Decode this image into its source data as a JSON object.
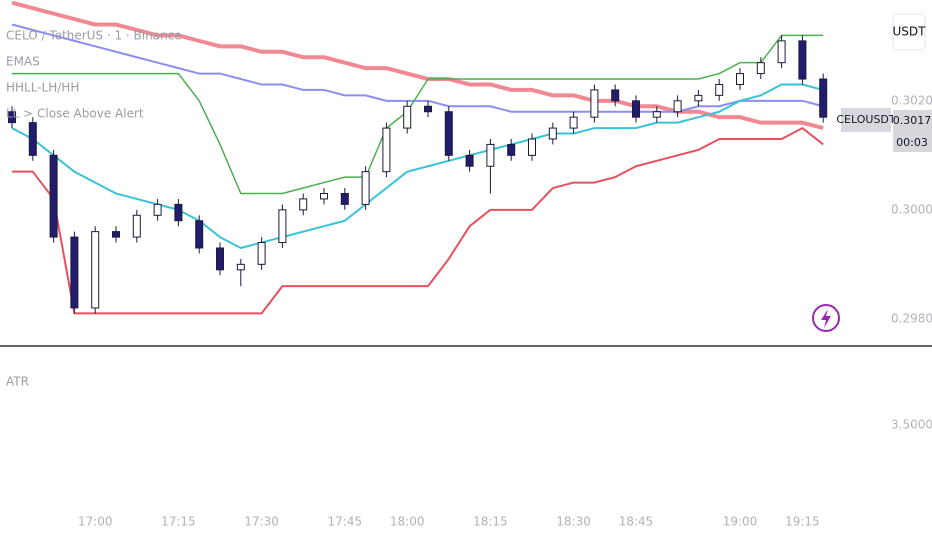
{
  "chart_data": {
    "type": "candlestick",
    "title": "CELO / TetherUS · 1 · Binance",
    "indicators": [
      "EMAS",
      "HHLL-LH/HH",
      "LL > Close Above Alert"
    ],
    "currency_button": "USDT",
    "symbol": "CELOUSDT",
    "last_price": 0.3017,
    "countdown": "00:03",
    "categories": [
      null,
      null,
      null,
      null,
      "17:00",
      null,
      null,
      null,
      "17:15",
      null,
      null,
      null,
      "17:30",
      null,
      null,
      null,
      "17:45",
      null,
      null,
      "18:00",
      null,
      null,
      null,
      "18:15",
      null,
      null,
      null,
      "18:30",
      null,
      null,
      "18:45",
      null,
      null,
      null,
      null,
      "19:00",
      null,
      null,
      "19:15",
      null
    ],
    "open": [
      0.3018,
      0.3016,
      0.301,
      0.2995,
      0.2982,
      0.2996,
      0.2995,
      0.2999,
      0.3001,
      0.2998,
      0.2993,
      0.2989,
      0.299,
      0.2994,
      0.3,
      0.3002,
      0.3003,
      0.3001,
      0.3007,
      0.3015,
      0.3019,
      0.3018,
      0.301,
      0.3008,
      0.3012,
      0.301,
      0.3013,
      0.3015,
      0.3017,
      0.3022,
      0.302,
      0.3017,
      0.3018,
      0.302,
      0.3021,
      0.3023,
      0.3025,
      0.3027,
      0.3031,
      0.3024
    ],
    "high": [
      0.3019,
      0.3017,
      0.3011,
      0.2996,
      0.2997,
      0.2997,
      0.3,
      0.3002,
      0.3002,
      0.2999,
      0.2994,
      0.2991,
      0.2995,
      0.3001,
      0.3003,
      0.3004,
      0.3004,
      0.3008,
      0.3016,
      0.302,
      0.302,
      0.3019,
      0.3011,
      0.3013,
      0.3013,
      0.3014,
      0.3016,
      0.3018,
      0.3023,
      0.3023,
      0.3021,
      0.3019,
      0.3021,
      0.3022,
      0.3024,
      0.3026,
      0.3028,
      0.3032,
      0.3032,
      0.3025
    ],
    "low": [
      0.3015,
      0.3009,
      0.2994,
      0.2981,
      0.2981,
      0.2994,
      0.2994,
      0.2998,
      0.2997,
      0.2992,
      0.2988,
      0.2986,
      0.2989,
      0.2993,
      0.2999,
      0.3001,
      0.3,
      0.3,
      0.3006,
      0.3014,
      0.3017,
      0.3009,
      0.3007,
      0.3003,
      0.3009,
      0.3009,
      0.3012,
      0.3014,
      0.3016,
      0.3019,
      0.3016,
      0.3016,
      0.3017,
      0.3019,
      0.302,
      0.3022,
      0.3024,
      0.3026,
      0.3023,
      0.3016
    ],
    "close": [
      0.3016,
      0.301,
      0.2995,
      0.2982,
      0.2996,
      0.2995,
      0.2999,
      0.3001,
      0.2998,
      0.2993,
      0.2989,
      0.299,
      0.2994,
      0.3,
      0.3002,
      0.3003,
      0.3001,
      0.3007,
      0.3015,
      0.3019,
      0.3018,
      0.301,
      0.3008,
      0.3012,
      0.301,
      0.3013,
      0.3015,
      0.3017,
      0.3022,
      0.302,
      0.3017,
      0.3018,
      0.302,
      0.3021,
      0.3023,
      0.3025,
      0.3027,
      0.3031,
      0.3024,
      0.3017
    ],
    "up_color": "#ffffff",
    "down_color": "#221c6e",
    "wick_color": "#1b1b3a",
    "overlays": [
      {
        "color": "#f0737f",
        "width": 4,
        "values": [
          0.3038,
          0.3037,
          0.3036,
          0.3035,
          0.3034,
          0.3034,
          0.3033,
          0.3032,
          0.3032,
          0.3031,
          0.303,
          0.303,
          0.3029,
          0.3029,
          0.3028,
          0.3028,
          0.3027,
          0.3026,
          0.3026,
          0.3025,
          0.3024,
          0.3024,
          0.3023,
          0.3023,
          0.3022,
          0.3022,
          0.3021,
          0.3021,
          0.302,
          0.302,
          0.3019,
          0.3019,
          0.3018,
          0.3018,
          0.3017,
          0.3017,
          0.3016,
          0.3016,
          0.3016,
          0.3015
        ]
      },
      {
        "color": "#8b8ff0",
        "width": 2,
        "values": [
          0.3034,
          0.3033,
          0.3032,
          0.3031,
          0.303,
          0.3029,
          0.3028,
          0.3027,
          0.3026,
          0.3025,
          0.3025,
          0.3024,
          0.3023,
          0.3023,
          0.3022,
          0.3022,
          0.3021,
          0.3021,
          0.302,
          0.302,
          0.302,
          0.3019,
          0.3019,
          0.3019,
          0.3018,
          0.3018,
          0.3018,
          0.3018,
          0.3018,
          0.3018,
          0.3018,
          0.3018,
          0.3018,
          0.3019,
          0.3019,
          0.302,
          0.302,
          0.302,
          0.302,
          0.3019
        ]
      },
      {
        "color": "#38c3d6",
        "width": 2,
        "values": [
          0.3015,
          0.3013,
          0.301,
          0.3007,
          0.3005,
          0.3003,
          0.3002,
          0.3001,
          0.3,
          0.2998,
          0.2995,
          0.2993,
          0.2994,
          0.2995,
          0.2996,
          0.2997,
          0.2998,
          0.3001,
          0.3004,
          0.3007,
          0.3008,
          0.3009,
          0.301,
          0.3011,
          0.3012,
          0.3013,
          0.3014,
          0.3014,
          0.3015,
          0.3015,
          0.3015,
          0.3016,
          0.3016,
          0.3017,
          0.3018,
          0.302,
          0.3021,
          0.3023,
          0.3023,
          0.3022
        ]
      },
      {
        "color": "#4caf50",
        "width": 1.5,
        "values": [
          0.3025,
          0.3025,
          0.3025,
          0.3025,
          0.3025,
          0.3025,
          0.3025,
          0.3025,
          0.3025,
          0.302,
          0.3012,
          0.3003,
          0.3003,
          0.3003,
          0.3004,
          0.3005,
          0.3006,
          0.3006,
          0.3015,
          0.3018,
          0.3024,
          0.3024,
          0.3024,
          0.3024,
          0.3024,
          0.3024,
          0.3024,
          0.3024,
          0.3024,
          0.3024,
          0.3024,
          0.3024,
          0.3024,
          0.3024,
          0.3025,
          0.3027,
          0.3027,
          0.3032,
          0.3032,
          0.3032
        ]
      },
      {
        "color": "#e8505f",
        "width": 2,
        "values": [
          0.3007,
          0.3007,
          0.3002,
          0.2981,
          0.2981,
          0.2981,
          0.2981,
          0.2981,
          0.2981,
          0.2981,
          0.2981,
          0.2981,
          0.2981,
          0.2986,
          0.2986,
          0.2986,
          0.2986,
          0.2986,
          0.2986,
          0.2986,
          0.2986,
          0.2991,
          0.2997,
          0.3,
          0.3,
          0.3,
          0.3004,
          0.3005,
          0.3005,
          0.3006,
          0.3008,
          0.3009,
          0.301,
          0.3011,
          0.3013,
          0.3013,
          0.3013,
          0.3013,
          0.3015,
          0.3012
        ]
      }
    ],
    "ylim": [
      0.29752,
      0.30385
    ],
    "yticks": [
      {
        "value": 0.302,
        "label": "0.3020"
      },
      {
        "value": 0.3,
        "label": "0.3000"
      },
      {
        "value": 0.298,
        "label": "0.2980"
      }
    ],
    "atr": {
      "title": "ATR",
      "ylim": [
        3.4,
        3.6
      ],
      "yticks": [
        {
          "value": 3.5,
          "label": "3.5000"
        }
      ]
    }
  }
}
